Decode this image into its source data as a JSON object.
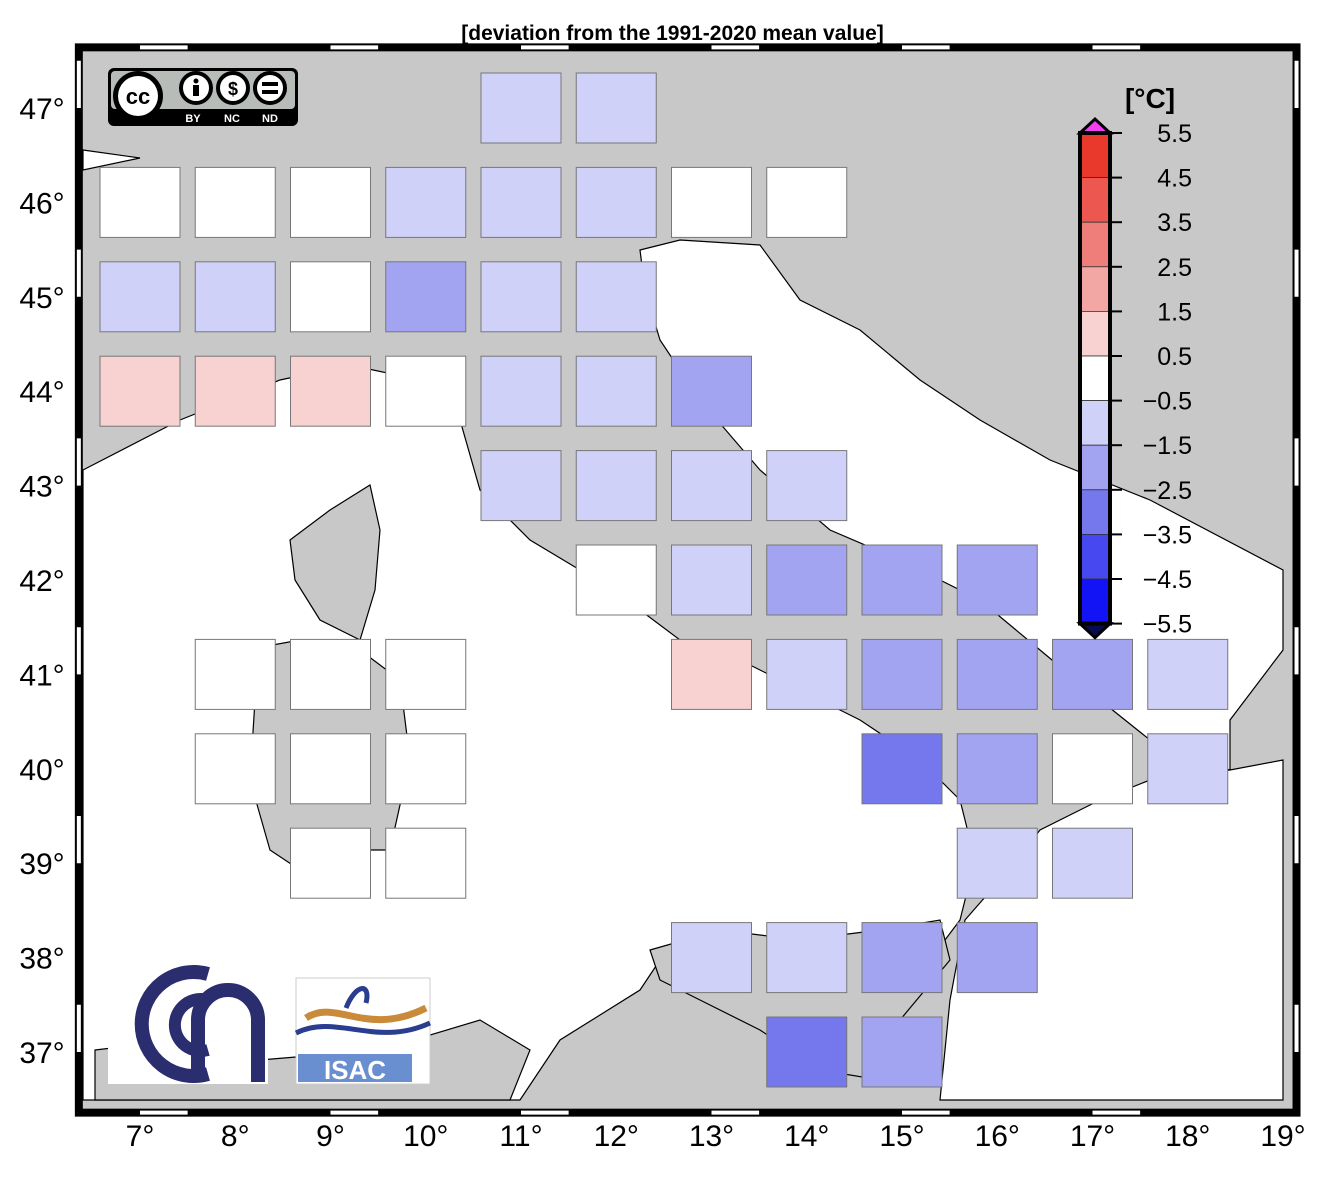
{
  "title": "[deviation from the 1991-2020 mean value]",
  "map": {
    "lon_range": [
      6.4,
      19.1
    ],
    "lat_range": [
      36.4,
      47.6
    ],
    "lon_ticks": [
      7,
      8,
      9,
      10,
      11,
      12,
      13,
      14,
      15,
      16,
      17,
      18,
      19
    ],
    "lat_ticks": [
      37,
      38,
      39,
      40,
      41,
      42,
      43,
      44,
      45,
      46,
      47
    ],
    "degree_symbol": "°",
    "land_color": "#c8c8c8",
    "sea_color": "#ffffff"
  },
  "colorbar": {
    "unit": "[°C]",
    "labels": [
      "5.5",
      "4.5",
      "3.5",
      "2.5",
      "1.5",
      "0.5",
      "−0.5",
      "−1.5",
      "−2.5",
      "−3.5",
      "−4.5",
      "−5.5"
    ],
    "colors": [
      "#e8392c",
      "#ec574f",
      "#ef7d79",
      "#f3a7a5",
      "#f7d2d1",
      "#ffffff",
      "#d0d1f8",
      "#a2a4f1",
      "#7577ec",
      "#4748ef",
      "#1314f5"
    ],
    "over_color": "#f040f0",
    "under_color": "#0a0a50"
  },
  "grid_cells": [
    {
      "lon": 11,
      "lat": 47,
      "value": -1
    },
    {
      "lon": 12,
      "lat": 47,
      "value": -1
    },
    {
      "lon": 7,
      "lat": 46,
      "value": 0
    },
    {
      "lon": 8,
      "lat": 46,
      "value": 0
    },
    {
      "lon": 9,
      "lat": 46,
      "value": 0
    },
    {
      "lon": 10,
      "lat": 46,
      "value": -1
    },
    {
      "lon": 11,
      "lat": 46,
      "value": -1
    },
    {
      "lon": 12,
      "lat": 46,
      "value": -1
    },
    {
      "lon": 13,
      "lat": 46,
      "value": 0
    },
    {
      "lon": 14,
      "lat": 46,
      "value": 0
    },
    {
      "lon": 7,
      "lat": 45,
      "value": -1
    },
    {
      "lon": 8,
      "lat": 45,
      "value": -1
    },
    {
      "lon": 9,
      "lat": 45,
      "value": 0
    },
    {
      "lon": 10,
      "lat": 45,
      "value": -2
    },
    {
      "lon": 11,
      "lat": 45,
      "value": -1
    },
    {
      "lon": 12,
      "lat": 45,
      "value": -1
    },
    {
      "lon": 7,
      "lat": 44,
      "value": 1
    },
    {
      "lon": 8,
      "lat": 44,
      "value": 1
    },
    {
      "lon": 9,
      "lat": 44,
      "value": 1
    },
    {
      "lon": 10,
      "lat": 44,
      "value": 0
    },
    {
      "lon": 11,
      "lat": 44,
      "value": -1
    },
    {
      "lon": 12,
      "lat": 44,
      "value": -1
    },
    {
      "lon": 13,
      "lat": 44,
      "value": -2
    },
    {
      "lon": 11,
      "lat": 43,
      "value": -1
    },
    {
      "lon": 12,
      "lat": 43,
      "value": -1
    },
    {
      "lon": 13,
      "lat": 43,
      "value": -1
    },
    {
      "lon": 14,
      "lat": 43,
      "value": -1
    },
    {
      "lon": 12,
      "lat": 42,
      "value": 0
    },
    {
      "lon": 13,
      "lat": 42,
      "value": -1
    },
    {
      "lon": 14,
      "lat": 42,
      "value": -2
    },
    {
      "lon": 15,
      "lat": 42,
      "value": -2
    },
    {
      "lon": 16,
      "lat": 42,
      "value": -2
    },
    {
      "lon": 8,
      "lat": 41,
      "value": 0
    },
    {
      "lon": 9,
      "lat": 41,
      "value": 0
    },
    {
      "lon": 10,
      "lat": 41,
      "value": 0
    },
    {
      "lon": 13,
      "lat": 41,
      "value": 1
    },
    {
      "lon": 14,
      "lat": 41,
      "value": -1
    },
    {
      "lon": 15,
      "lat": 41,
      "value": -2
    },
    {
      "lon": 16,
      "lat": 41,
      "value": -2
    },
    {
      "lon": 17,
      "lat": 41,
      "value": -2
    },
    {
      "lon": 18,
      "lat": 41,
      "value": -1
    },
    {
      "lon": 8,
      "lat": 40,
      "value": 0
    },
    {
      "lon": 9,
      "lat": 40,
      "value": 0
    },
    {
      "lon": 10,
      "lat": 40,
      "value": 0
    },
    {
      "lon": 15,
      "lat": 40,
      "value": -3
    },
    {
      "lon": 16,
      "lat": 40,
      "value": -2
    },
    {
      "lon": 17,
      "lat": 40,
      "value": 0
    },
    {
      "lon": 18,
      "lat": 40,
      "value": -1
    },
    {
      "lon": 9,
      "lat": 39,
      "value": 0
    },
    {
      "lon": 10,
      "lat": 39,
      "value": 0
    },
    {
      "lon": 16,
      "lat": 39,
      "value": -1
    },
    {
      "lon": 17,
      "lat": 39,
      "value": -1
    },
    {
      "lon": 13,
      "lat": 38,
      "value": -1
    },
    {
      "lon": 14,
      "lat": 38,
      "value": -1
    },
    {
      "lon": 15,
      "lat": 38,
      "value": -2
    },
    {
      "lon": 16,
      "lat": 38,
      "value": -2
    },
    {
      "lon": 14,
      "lat": 37,
      "value": -3
    },
    {
      "lon": 15,
      "lat": 37,
      "value": -2
    }
  ],
  "logos": {
    "license": {
      "cc": "cc",
      "by": "BY",
      "nc": "NC",
      "nd": "ND"
    },
    "institute": "ISAC"
  }
}
